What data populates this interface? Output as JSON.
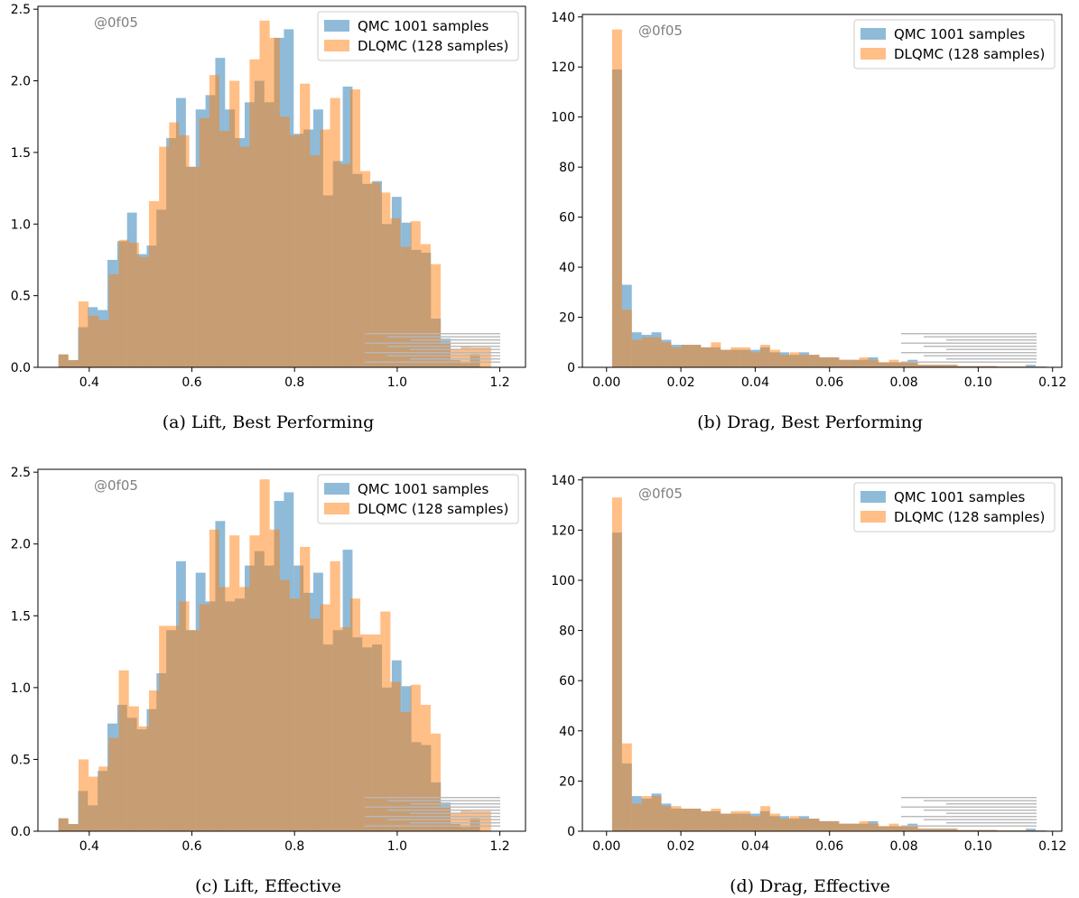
{
  "colors": {
    "qmc": "#1f77b4",
    "dlqmc": "#ff7f0e"
  },
  "chart_data": [
    {
      "type": "bar",
      "panel": "a",
      "caption": "(a) Lift, Best Performing",
      "watermark": "@0f05",
      "legend": [
        "QMC 1001 samples",
        "DLQMC (128 samples)"
      ],
      "legend_position": "top-right",
      "xlim": [
        0.3,
        1.25
      ],
      "ylim": [
        0,
        2.52
      ],
      "xticks": [
        0.4,
        0.6,
        0.8,
        1.0,
        1.2
      ],
      "xtick_labels": [
        "0.4",
        "0.6",
        "0.8",
        "1.0",
        "1.2"
      ],
      "yticks": [
        0.0,
        0.5,
        1.0,
        1.5,
        2.0,
        2.5
      ],
      "ytick_labels": [
        "0.0",
        "0.5",
        "1.0",
        "1.5",
        "2.0",
        "2.5"
      ],
      "series": [
        {
          "name": "QMC 1001 samples",
          "bin_start": 0.34,
          "bin_width": 0.0191,
          "values": [
            0.09,
            0.05,
            0.28,
            0.42,
            0.4,
            0.75,
            0.88,
            1.08,
            0.79,
            0.85,
            1.1,
            1.6,
            1.88,
            1.4,
            1.8,
            1.9,
            2.16,
            1.8,
            1.6,
            1.85,
            2.0,
            1.85,
            2.3,
            2.36,
            1.63,
            1.66,
            1.8,
            1.2,
            1.44,
            1.96,
            1.35,
            1.28,
            1.3,
            1.0,
            1.19,
            1.01,
            0.82,
            0.8,
            0.34,
            0.2,
            0.05,
            0.03,
            0.09
          ]
        },
        {
          "name": "DLQMC (128 samples)",
          "bin_start": 0.34,
          "bin_width": 0.0196,
          "values": [
            0.09,
            0.05,
            0.46,
            0.36,
            0.33,
            0.65,
            0.89,
            0.87,
            0.77,
            1.16,
            1.54,
            1.71,
            1.62,
            1.4,
            1.74,
            2.04,
            1.65,
            2.0,
            1.54,
            2.15,
            2.42,
            2.3,
            1.75,
            1.62,
            1.98,
            1.48,
            1.66,
            1.88,
            1.42,
            1.94,
            1.37,
            1.29,
            1.22,
            1.04,
            0.84,
            1.02,
            0.86,
            0.72,
            0.17,
            0.13,
            0.15,
            0.14,
            0.14
          ]
        }
      ]
    },
    {
      "type": "bar",
      "panel": "b",
      "caption": "(b) Drag, Best Performing",
      "watermark": "@0f05",
      "legend": [
        "QMC 1001 samples",
        "DLQMC (128 samples)"
      ],
      "legend_position": "top-right",
      "xlim": [
        -0.0065,
        0.1225
      ],
      "ylim": [
        0,
        141
      ],
      "xticks": [
        0.0,
        0.02,
        0.04,
        0.06,
        0.08,
        0.1,
        0.12
      ],
      "xtick_labels": [
        "0.00",
        "0.02",
        "0.04",
        "0.06",
        "0.08",
        "0.10",
        "0.12"
      ],
      "yticks": [
        0,
        20,
        40,
        60,
        80,
        100,
        120,
        140
      ],
      "ytick_labels": [
        "0",
        "20",
        "40",
        "60",
        "80",
        "100",
        "120",
        "140"
      ],
      "series": [
        {
          "name": "QMC 1001 samples",
          "bin_start": 0.0015,
          "bin_width": 0.00265,
          "values": [
            119,
            33,
            14,
            13,
            14,
            11,
            9,
            9,
            9,
            8,
            8,
            7,
            7,
            7,
            7,
            8,
            6,
            6,
            5,
            6,
            5,
            4,
            4,
            3,
            3,
            3,
            4,
            2,
            2,
            2,
            3,
            1,
            1,
            1,
            1,
            0.5,
            0.5,
            0.5,
            0.5,
            0.3,
            0.3,
            0.3,
            1,
            0.3
          ]
        },
        {
          "name": "DLQMC (128 samples)",
          "bin_start": 0.0015,
          "bin_width": 0.00266,
          "values": [
            135,
            23,
            11,
            12,
            12,
            10,
            8,
            9,
            9,
            8,
            10,
            7,
            8,
            8,
            6,
            9,
            7,
            5,
            6,
            5,
            5,
            4,
            4,
            3,
            3,
            4,
            3,
            2,
            3,
            2,
            2,
            1,
            1,
            1,
            1,
            0.5,
            0.5,
            0.5,
            0.5,
            0.3,
            0.3,
            0.3,
            0.3,
            0.3
          ]
        }
      ]
    },
    {
      "type": "bar",
      "panel": "c",
      "caption": "(c) Lift, Effective",
      "watermark": "@0f05",
      "legend": [
        "QMC 1001 samples",
        "DLQMC (128 samples)"
      ],
      "legend_position": "top-right",
      "xlim": [
        0.3,
        1.25
      ],
      "ylim": [
        0,
        2.52
      ],
      "xticks": [
        0.4,
        0.6,
        0.8,
        1.0,
        1.2
      ],
      "xtick_labels": [
        "0.4",
        "0.6",
        "0.8",
        "1.0",
        "1.2"
      ],
      "yticks": [
        0.0,
        0.5,
        1.0,
        1.5,
        2.0,
        2.5
      ],
      "ytick_labels": [
        "0.0",
        "0.5",
        "1.0",
        "1.5",
        "2.0",
        "2.5"
      ],
      "series": [
        {
          "name": "QMC 1001 samples",
          "bin_start": 0.34,
          "bin_width": 0.0191,
          "values": [
            0.09,
            0.05,
            0.28,
            0.18,
            0.42,
            0.75,
            0.88,
            0.79,
            0.71,
            0.85,
            1.1,
            1.4,
            1.88,
            1.4,
            1.8,
            1.6,
            2.16,
            1.6,
            1.62,
            1.85,
            1.95,
            1.85,
            2.3,
            2.36,
            1.85,
            1.66,
            1.8,
            1.3,
            1.4,
            1.96,
            1.35,
            1.28,
            1.3,
            1.0,
            1.19,
            1.01,
            0.62,
            0.6,
            0.34,
            0.2,
            0.05,
            0.03,
            0.09
          ]
        },
        {
          "name": "DLQMC (128 samples)",
          "bin_start": 0.34,
          "bin_width": 0.0196,
          "values": [
            0.09,
            0.05,
            0.5,
            0.38,
            0.45,
            0.65,
            1.12,
            0.87,
            0.73,
            0.98,
            1.43,
            1.43,
            1.6,
            1.4,
            1.58,
            2.1,
            1.7,
            2.06,
            1.7,
            2.06,
            2.45,
            2.1,
            1.75,
            1.62,
            1.98,
            1.48,
            1.58,
            1.88,
            1.42,
            1.62,
            1.37,
            1.37,
            1.53,
            1.04,
            0.83,
            1.02,
            0.88,
            0.68,
            0.17,
            0.13,
            0.15,
            0.14,
            0.14
          ]
        }
      ]
    },
    {
      "type": "bar",
      "panel": "d",
      "caption": "(d) Drag, Effective",
      "watermark": "@0f05",
      "legend": [
        "QMC 1001 samples",
        "DLQMC (128 samples)"
      ],
      "legend_position": "top-right",
      "xlim": [
        -0.0065,
        0.1225
      ],
      "ylim": [
        0,
        141
      ],
      "xticks": [
        0.0,
        0.02,
        0.04,
        0.06,
        0.08,
        0.1,
        0.12
      ],
      "xtick_labels": [
        "0.00",
        "0.02",
        "0.04",
        "0.06",
        "0.08",
        "0.10",
        "0.12"
      ],
      "yticks": [
        0,
        20,
        40,
        60,
        80,
        100,
        120,
        140
      ],
      "ytick_labels": [
        "0",
        "20",
        "40",
        "60",
        "80",
        "100",
        "120",
        "140"
      ],
      "series": [
        {
          "name": "QMC 1001 samples",
          "bin_start": 0.0015,
          "bin_width": 0.00265,
          "values": [
            119,
            27,
            14,
            13,
            15,
            11,
            9,
            9,
            9,
            8,
            8,
            7,
            7,
            7,
            7,
            8,
            6,
            6,
            5,
            6,
            5,
            4,
            4,
            3,
            3,
            3,
            4,
            2,
            2,
            2,
            3,
            1,
            1,
            1,
            1,
            0.5,
            0.5,
            0.5,
            0.5,
            0.3,
            0.3,
            0.3,
            1,
            0.3
          ]
        },
        {
          "name": "DLQMC (128 samples)",
          "bin_start": 0.0015,
          "bin_width": 0.00266,
          "values": [
            133,
            35,
            11,
            14,
            14,
            10,
            10,
            9,
            9,
            8,
            9,
            7,
            8,
            8,
            6,
            10,
            7,
            5,
            6,
            5,
            5,
            4,
            4,
            3,
            3,
            4,
            3,
            2,
            3,
            2,
            2,
            1,
            1,
            1,
            1,
            0.5,
            0.5,
            0.5,
            0.5,
            0.3,
            0.3,
            0.3,
            0.3,
            0.3
          ]
        }
      ]
    }
  ]
}
